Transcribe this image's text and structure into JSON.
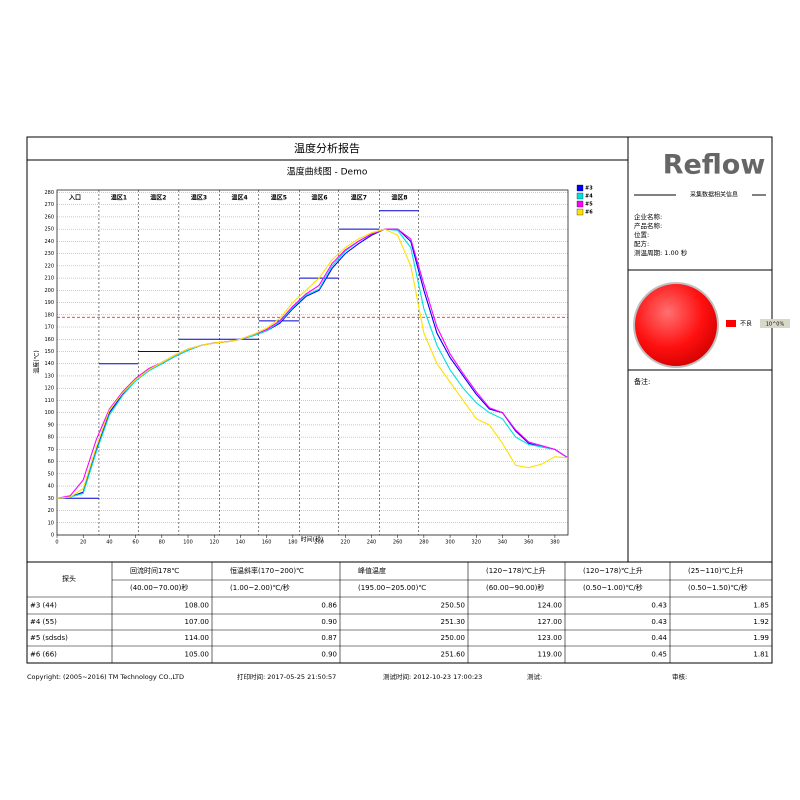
{
  "report": {
    "title": "温度分析报告"
  },
  "chart_data": {
    "type": "line",
    "title": "温度曲线图 - Demo",
    "x_label": "时间(秒)",
    "y_label": "温度(℃)",
    "x": [
      0,
      10,
      20,
      30,
      40,
      50,
      60,
      70,
      80,
      90,
      100,
      110,
      120,
      130,
      140,
      150,
      160,
      170,
      180,
      190,
      200,
      210,
      220,
      230,
      240,
      250,
      260,
      270,
      280,
      290,
      300,
      310,
      320,
      330,
      340,
      350,
      360,
      370,
      380,
      390
    ],
    "series": [
      {
        "name": "#3",
        "color": "#0000ff",
        "values": [
          30,
          31,
          35,
          70,
          100,
          115,
          127,
          135,
          140,
          146,
          151,
          155,
          157,
          158,
          160,
          163,
          167,
          173,
          185,
          195,
          200,
          218,
          230,
          238,
          245,
          250,
          250,
          240,
          200,
          165,
          145,
          130,
          115,
          103,
          100,
          85,
          75,
          72,
          70,
          63
        ]
      },
      {
        "name": "#4",
        "color": "#00e0e0",
        "values": [
          30,
          31,
          34,
          68,
          98,
          114,
          126,
          134,
          140,
          146,
          151,
          155,
          157,
          158,
          160,
          163,
          167,
          174,
          186,
          196,
          201,
          220,
          232,
          240,
          246,
          250,
          249,
          235,
          185,
          155,
          135,
          120,
          108,
          100,
          95,
          80,
          74,
          72,
          70,
          63
        ]
      },
      {
        "name": "#5",
        "color": "#ff00ff",
        "values": [
          30,
          32,
          45,
          78,
          103,
          117,
          128,
          136,
          141,
          147,
          152,
          155,
          157,
          158,
          160,
          164,
          168,
          175,
          187,
          197,
          204,
          222,
          233,
          240,
          246,
          250,
          250,
          242,
          205,
          170,
          148,
          132,
          117,
          104,
          100,
          86,
          76,
          73,
          70,
          63
        ]
      },
      {
        "name": "#6",
        "color": "#ffe000",
        "values": [
          30,
          31,
          38,
          72,
          102,
          116,
          127,
          135,
          141,
          147,
          152,
          155,
          157,
          158,
          160,
          164,
          169,
          177,
          190,
          200,
          210,
          225,
          235,
          242,
          247,
          250,
          245,
          220,
          165,
          140,
          125,
          110,
          95,
          90,
          75,
          57,
          55,
          58,
          64,
          63
        ]
      }
    ],
    "xlim": [
      0,
      390
    ],
    "xticks": [
      0,
      20,
      40,
      60,
      80,
      100,
      120,
      140,
      160,
      180,
      200,
      220,
      240,
      260,
      280,
      300,
      320,
      340,
      360,
      380
    ],
    "ylim": [
      0,
      282
    ],
    "yticks": [
      0,
      10,
      20,
      30,
      40,
      50,
      60,
      70,
      80,
      90,
      100,
      110,
      120,
      130,
      140,
      150,
      160,
      170,
      180,
      190,
      200,
      210,
      220,
      230,
      240,
      250,
      260,
      270,
      280
    ],
    "grid": true,
    "legend": "right",
    "limit_line": 178,
    "limit_color": "#ff0000",
    "zone_color": "#0000cc",
    "zones": [
      {
        "name": "入口",
        "start": 0,
        "end": 32,
        "setpoint": 30
      },
      {
        "name": "温区1",
        "start": 32,
        "end": 62,
        "setpoint": 140
      },
      {
        "name": "温区2",
        "start": 62,
        "end": 93,
        "setpoint": 150
      },
      {
        "name": "温区3",
        "start": 93,
        "end": 124,
        "setpoint": 160
      },
      {
        "name": "温区4",
        "start": 124,
        "end": 154,
        "setpoint": 160
      },
      {
        "name": "温区5",
        "start": 154,
        "end": 185,
        "setpoint": 175
      },
      {
        "name": "温区6",
        "start": 185,
        "end": 215,
        "setpoint": 210
      },
      {
        "name": "温区7",
        "start": 215,
        "end": 246,
        "setpoint": 250
      },
      {
        "name": "温区8",
        "start": 246,
        "end": 276,
        "setpoint": 265
      }
    ]
  },
  "side_panel": {
    "logo": "Reflow",
    "section_title": "采集数据相关信息",
    "fields": [
      "企业名称:",
      "产品名称:",
      "位置:",
      "配方:",
      "测温周期: 1.00 秒"
    ],
    "status_label": "不良",
    "status_value": "10^0%",
    "remark": "备注:"
  },
  "table": {
    "probe_header": "探头",
    "headers": [
      "回流时间178℃",
      "恒温斜率(170~200)℃",
      "峰值温度",
      "(120~178)℃上升",
      "(120~178)℃上升",
      "(25~110)℃上升"
    ],
    "ranges": [
      "(40.00~70.00)秒",
      "(1.00~2.00)℃/秒",
      "(195.00~205.00)℃",
      "(60.00~90.00)秒",
      "(0.50~1.00)℃/秒",
      "(0.50~1.50)℃/秒"
    ],
    "rows": [
      [
        "#3 (44)",
        "108.00",
        "0.86",
        "250.50",
        "124.00",
        "0.43",
        "1.85"
      ],
      [
        "#4 (55)",
        "107.00",
        "0.90",
        "251.30",
        "127.00",
        "0.43",
        "1.92"
      ],
      [
        "#5 (sdsds)",
        "114.00",
        "0.87",
        "250.00",
        "123.00",
        "0.44",
        "1.99"
      ],
      [
        "#6 (66)",
        "105.00",
        "0.90",
        "251.60",
        "119.00",
        "0.45",
        "1.81"
      ]
    ]
  },
  "footer": [
    "Copyright: (2005~2016) TM Technology CO.,LTD",
    "打印时间: 2017-05-25 21:50:57",
    "测试时间: 2012-10-23 17:00:23",
    "测试:",
    "审核:"
  ]
}
